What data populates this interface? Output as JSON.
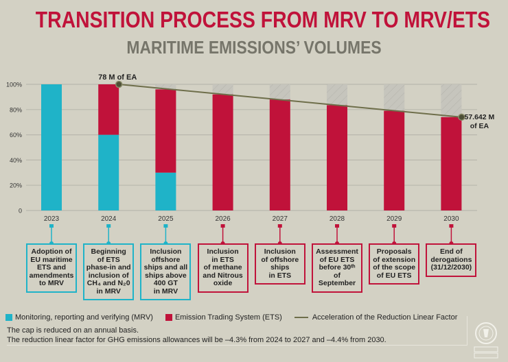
{
  "title": "TRANSITION PROCESS FROM MRV TO MRV/ETS",
  "subtitle": "MARITIME EMISSIONS’ VOLUMES",
  "colors": {
    "mrv": "#1fb3c8",
    "ets": "#c0123a",
    "line": "#6e6e4a",
    "cap_hatch": "#c6c5bd"
  },
  "chart_data": {
    "type": "bar",
    "stacked": true,
    "categories": [
      "2023",
      "2024",
      "2025",
      "2026",
      "2027",
      "2028",
      "2029",
      "2030"
    ],
    "yticks": [
      "0",
      "20%",
      "40%",
      "60%",
      "80%",
      "100%"
    ],
    "ylim": [
      0,
      100
    ],
    "grid": true,
    "series": [
      {
        "name": "Monitoring, reporting and verifying (MRV)",
        "values": [
          100,
          60,
          30,
          0,
          0,
          0,
          0,
          0
        ]
      },
      {
        "name": "Emission Trading System (ETS)",
        "values": [
          0,
          40,
          66,
          92,
          88,
          83.5,
          79,
          74
        ]
      }
    ],
    "line": {
      "name": "Acceleration of the Reduction Linear Factor",
      "x": [
        "2024",
        "2030"
      ],
      "y": [
        100,
        74
      ]
    },
    "annotations": [
      {
        "label": "78 M of EA",
        "x": "2024"
      },
      {
        "label": "57.642 M",
        "label2": "of EA",
        "x": "2030"
      }
    ],
    "legend": "bottom"
  },
  "timeline": [
    {
      "year": "2023",
      "type": "mrv",
      "lines": [
        "Adoption of",
        "EU maritime",
        "ETS and",
        "amendments",
        "to MRV"
      ]
    },
    {
      "year": "2024",
      "type": "mrv",
      "lines": [
        "Beginning",
        "of ETS",
        "phase-in and",
        "inclusion of",
        "CH₄ and N₂0",
        "in MRV"
      ]
    },
    {
      "year": "2025",
      "type": "mrv",
      "lines": [
        "Inclusion",
        "offshore",
        "ships and all",
        "ships above",
        "400 GT",
        "in MRV"
      ]
    },
    {
      "year": "2026",
      "type": "ets",
      "lines": [
        "Inclusion",
        "in ETS",
        "of methane",
        "and Nitrous",
        "oxide"
      ]
    },
    {
      "year": "2027",
      "type": "ets",
      "lines": [
        "Inclusion",
        "of offshore",
        "ships",
        "in ETS"
      ]
    },
    {
      "year": "2028",
      "type": "ets",
      "lines": [
        "Assessment",
        "of EU ETS",
        "before 30ᵗʰ",
        "of September"
      ]
    },
    {
      "year": "2029",
      "type": "ets",
      "lines": [
        "Proposals",
        "of extension",
        "of the scope",
        "of EU ETS"
      ]
    },
    {
      "year": "2030",
      "type": "ets",
      "lines": [
        "End of",
        "derogations",
        "(31/12/2030)"
      ]
    }
  ],
  "legend": {
    "mrv": "Monitoring, reporting and verifying (MRV)",
    "ets": "Emission Trading System (ETS)",
    "line": "Acceleration of the Reduction Linear Factor"
  },
  "notes": [
    "The cap is reduced on an annual basis.",
    "The reduction linear factor for GHG emissions allowances will be –4.3% from 2024 to 2027 and –4.4% from 2030."
  ],
  "logo": {
    "name": "bureau-veritas-seal",
    "text": "BUREAU VERITAS"
  }
}
